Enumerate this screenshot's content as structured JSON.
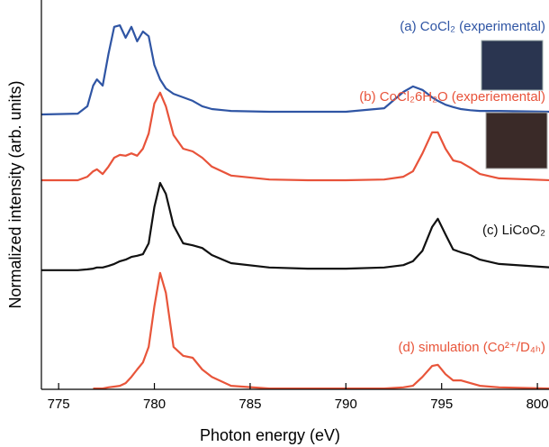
{
  "chart_data": {
    "type": "line",
    "xlabel": "Photon energy (eV)",
    "ylabel": "Normalized intensity (arb. units)",
    "x": [
      774.1,
      776,
      776.5,
      776.8,
      777,
      777.3,
      777.6,
      777.9,
      778.2,
      778.5,
      778.8,
      779.1,
      779.4,
      779.7,
      780,
      780.3,
      780.6,
      781,
      781.5,
      782,
      782.5,
      783,
      784,
      786,
      788,
      790,
      792,
      793,
      793.5,
      794,
      794.5,
      794.8,
      795.2,
      795.6,
      796,
      796.5,
      797,
      798,
      800.7
    ],
    "xlim": [
      774.1,
      800.7
    ],
    "xticks": [
      775,
      780,
      785,
      790,
      795,
      800
    ],
    "ylim": [
      0,
      10
    ],
    "series": [
      {
        "name": "(a) CoCl₂ (experimental)",
        "color": "#2f55a4",
        "values": [
          7.06,
          7.08,
          7.27,
          7.8,
          7.96,
          7.8,
          8.61,
          9.31,
          9.35,
          9.03,
          9.31,
          8.94,
          9.19,
          9.07,
          8.33,
          7.96,
          7.73,
          7.59,
          7.5,
          7.41,
          7.27,
          7.2,
          7.15,
          7.13,
          7.13,
          7.13,
          7.22,
          7.64,
          7.78,
          7.69,
          7.5,
          7.41,
          7.31,
          7.25,
          7.2,
          7.17,
          7.15,
          7.15,
          7.13
        ]
      },
      {
        "name": "(b) CoCl₂6H₂O (experiemental)",
        "color": "#e8533a",
        "values": [
          5.37,
          5.37,
          5.46,
          5.6,
          5.65,
          5.53,
          5.72,
          5.95,
          6.02,
          6.0,
          6.06,
          6.0,
          6.18,
          6.57,
          7.34,
          7.62,
          7.27,
          6.53,
          6.18,
          6.11,
          5.95,
          5.72,
          5.49,
          5.39,
          5.37,
          5.37,
          5.39,
          5.46,
          5.6,
          6.06,
          6.6,
          6.6,
          6.18,
          5.88,
          5.83,
          5.69,
          5.53,
          5.42,
          5.37
        ]
      },
      {
        "name": "(c) LiCoO₂",
        "color": "#111111",
        "values": [
          3.06,
          3.06,
          3.08,
          3.1,
          3.13,
          3.13,
          3.17,
          3.22,
          3.29,
          3.33,
          3.4,
          3.43,
          3.47,
          3.75,
          4.68,
          5.3,
          5.02,
          4.21,
          3.75,
          3.7,
          3.63,
          3.45,
          3.24,
          3.13,
          3.1,
          3.1,
          3.13,
          3.19,
          3.29,
          3.56,
          4.17,
          4.38,
          3.98,
          3.59,
          3.52,
          3.45,
          3.33,
          3.22,
          3.13
        ]
      },
      {
        "name": "(d) simulation (Co²⁺/D₄ₕ)",
        "color": "#e8553a",
        "values": [
          null,
          null,
          null,
          0.02,
          0.02,
          0.02,
          0.05,
          0.07,
          0.09,
          0.16,
          0.32,
          0.51,
          0.69,
          1.09,
          2.13,
          2.99,
          2.48,
          1.09,
          0.86,
          0.81,
          0.51,
          0.32,
          0.09,
          0.02,
          0.02,
          0.02,
          0.02,
          0.05,
          0.09,
          0.32,
          0.6,
          0.63,
          0.39,
          0.23,
          0.23,
          0.16,
          0.09,
          0.05,
          0.02
        ]
      }
    ]
  }
}
